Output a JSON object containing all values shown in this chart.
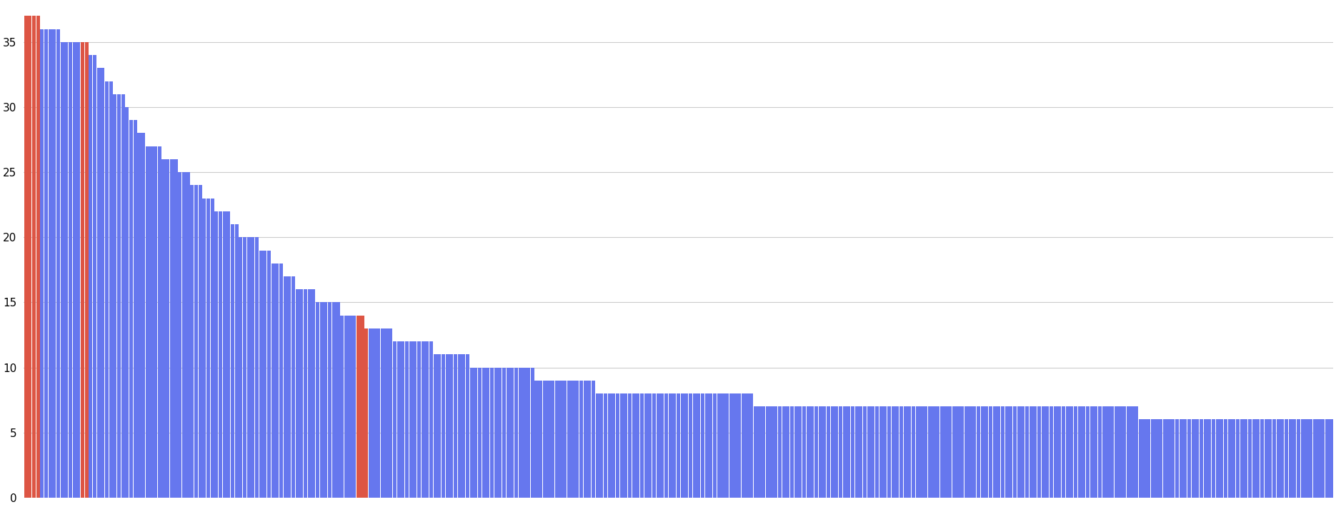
{
  "bar_color_default": "#6677ee",
  "bar_color_red": "#dd5544",
  "background_color": "#ffffff",
  "grid_color": "#cccccc",
  "ylim": [
    0,
    38
  ],
  "yticks": [
    0,
    5,
    10,
    15,
    20,
    25,
    30,
    35
  ],
  "values": [
    37,
    37,
    37,
    37,
    36,
    36,
    36,
    36,
    36,
    35,
    35,
    35,
    35,
    35,
    35,
    35,
    34,
    34,
    33,
    33,
    32,
    32,
    31,
    31,
    31,
    30,
    29,
    29,
    28,
    28,
    27,
    27,
    27,
    27,
    26,
    26,
    26,
    26,
    25,
    25,
    25,
    24,
    24,
    24,
    23,
    23,
    23,
    22,
    22,
    22,
    22,
    21,
    21,
    20,
    20,
    20,
    20,
    20,
    19,
    19,
    19,
    18,
    18,
    18,
    17,
    17,
    17,
    16,
    16,
    16,
    16,
    16,
    15,
    15,
    15,
    15,
    15,
    15,
    14,
    14,
    14,
    14,
    14,
    14,
    13,
    13,
    13,
    13,
    13,
    13,
    13,
    12,
    12,
    12,
    12,
    12,
    12,
    12,
    12,
    12,
    12,
    11,
    11,
    11,
    11,
    11,
    11,
    11,
    11,
    11,
    10,
    10,
    10,
    10,
    10,
    10,
    10,
    10,
    10,
    10,
    10,
    10,
    10,
    10,
    10,
    10,
    9,
    9,
    9,
    9,
    9,
    9,
    9,
    9,
    9,
    9,
    9,
    9,
    9,
    9,
    9,
    8,
    8,
    8,
    8,
    8,
    8,
    8,
    8,
    8,
    8,
    8,
    8,
    8,
    8,
    8,
    8,
    8,
    8,
    8,
    8,
    8,
    8,
    8,
    8,
    8,
    8,
    8,
    8,
    8,
    8,
    8,
    8,
    8,
    8,
    8,
    8,
    8,
    8,
    8,
    7,
    7,
    7,
    7,
    7,
    7,
    7,
    7,
    7,
    7,
    7,
    7,
    7,
    7,
    7,
    7,
    7,
    7,
    7,
    7,
    7,
    7,
    7,
    7,
    7,
    7,
    7,
    7,
    7,
    7,
    7,
    7,
    7,
    7,
    7,
    7,
    7,
    7,
    7,
    7,
    7,
    7,
    7,
    7,
    7,
    7,
    7,
    7,
    7,
    7,
    7,
    7,
    7,
    7,
    7,
    7,
    7,
    7,
    7,
    7,
    7,
    7,
    7,
    7,
    7,
    7,
    7,
    7,
    7,
    7,
    7,
    7,
    7,
    7,
    7,
    7,
    7,
    7,
    7,
    7,
    7,
    7,
    7,
    7,
    7,
    7,
    7,
    7,
    7,
    7,
    7,
    7,
    7,
    7,
    7,
    6,
    6,
    6,
    6,
    6,
    6,
    6,
    6,
    6,
    6,
    6,
    6,
    6,
    6,
    6,
    6,
    6,
    6,
    6,
    6,
    6,
    6,
    6,
    6,
    6,
    6,
    6,
    6,
    6,
    6,
    6,
    6,
    6,
    6,
    6,
    6,
    6,
    6,
    6,
    6,
    6,
    6,
    6,
    6,
    6,
    6,
    6,
    6
  ],
  "red_indices": [
    0,
    1,
    2,
    3,
    14,
    15,
    82,
    83,
    84
  ]
}
